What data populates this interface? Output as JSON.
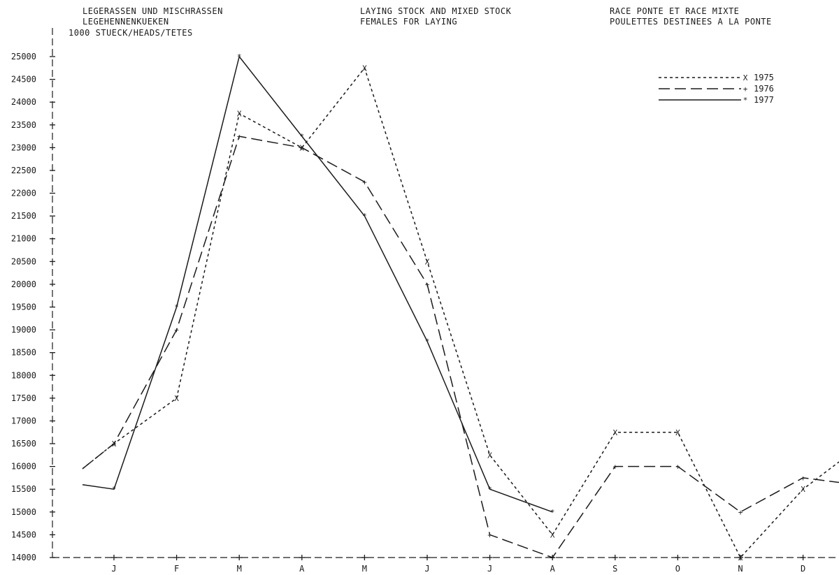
{
  "header": {
    "de": [
      "LEGERASSEN UND MISCHRASSEN",
      "LEGEHENNENKUEKEN"
    ],
    "unit": "1000 STUECK/HEADS/TETES",
    "en": [
      "LAYING STOCK AND MIXED STOCK",
      "FEMALES FOR LAYING"
    ],
    "fr": [
      "RACE PONTE ET RACE MIXTE",
      "POULETTES DESTINEES A LA PONTE"
    ]
  },
  "chart_data": {
    "type": "line",
    "title": "",
    "xlabel": "",
    "ylabel": "1000 STUECK/HEADS/TETES",
    "categories": [
      "J",
      "F",
      "M",
      "A",
      "M",
      "J",
      "J",
      "A",
      "S",
      "O",
      "N",
      "D"
    ],
    "ylim": [
      14000,
      25000
    ],
    "yticks": [
      14000,
      14500,
      15000,
      15500,
      16000,
      16500,
      17000,
      17500,
      18000,
      18500,
      19000,
      19500,
      20000,
      20500,
      21000,
      21500,
      22000,
      22500,
      23000,
      23500,
      24000,
      24500,
      25000
    ],
    "legend_position": "top-right",
    "grid": false,
    "series": [
      {
        "name": "1975",
        "marker": "X",
        "line_style": "dotted",
        "start_value": 15950,
        "end_value": 16100,
        "values": [
          16500,
          17500,
          23750,
          23000,
          24750,
          20500,
          16250,
          14500,
          16750,
          16750,
          14000,
          15500
        ]
      },
      {
        "name": "1976",
        "marker": "+",
        "line_style": "dashed",
        "start_value": 15950,
        "end_value": null,
        "values": [
          16500,
          19000,
          23250,
          23000,
          22250,
          20000,
          14500,
          14000,
          16000,
          16000,
          15000,
          15750
        ]
      },
      {
        "name": "1977",
        "marker": "*",
        "line_style": "solid",
        "start_value": 15600,
        "end_value": null,
        "values": [
          15500,
          19500,
          25000,
          23250,
          21500,
          18750,
          15500,
          15000,
          null,
          null,
          null,
          null
        ]
      }
    ]
  }
}
